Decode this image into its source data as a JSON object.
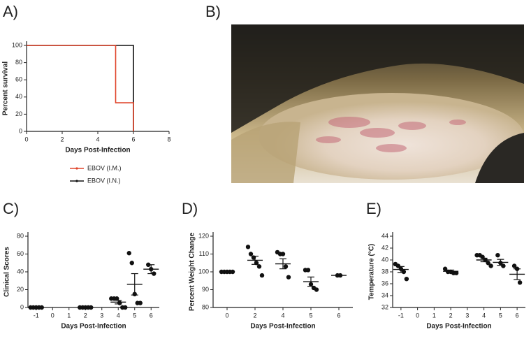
{
  "panels": [
    "A)",
    "B)",
    "C)",
    "D)",
    "E)"
  ],
  "chart_data": [
    {
      "type": "step",
      "xlabel": "Days Post-Infection",
      "ylabel": "Percent survival",
      "xlim": [
        0,
        8
      ],
      "xticks": [
        0,
        2,
        4,
        6,
        8
      ],
      "ylim": [
        0,
        100
      ],
      "yticks": [
        0,
        20,
        40,
        60,
        80,
        100
      ],
      "series": [
        {
          "name": "EBOV (I.N.)",
          "color": "#111111",
          "x": [
            0,
            6
          ],
          "values": [
            100,
            0
          ]
        },
        {
          "name": "EBOV (I.M.)",
          "color": "#e0452b",
          "x": [
            0,
            5,
            6
          ],
          "values": [
            100,
            33.3,
            0
          ]
        }
      ]
    },
    {
      "type": "dotplot",
      "xlabel": "Days Post-Infection",
      "ylabel": "Clinical Scores",
      "xlim": [
        -1.5,
        6.5
      ],
      "xticks": [
        -1,
        0,
        1,
        2,
        3,
        4,
        5,
        6
      ],
      "ylim": [
        0,
        80
      ],
      "yticks": [
        0,
        20,
        40,
        60,
        80
      ],
      "x": [
        -1,
        2,
        4,
        5,
        6
      ],
      "points": [
        [
          0,
          0,
          0,
          0,
          0
        ],
        [
          0,
          0,
          0,
          0,
          0
        ],
        [
          10,
          10,
          10,
          5,
          0,
          0
        ],
        [
          61,
          50,
          15,
          5,
          5
        ],
        [
          48,
          43,
          38
        ]
      ],
      "mean": [
        0,
        0,
        6,
        26,
        43
      ],
      "sem": [
        0,
        0,
        2,
        12,
        5
      ]
    },
    {
      "type": "dotplot",
      "xlabel": "Days Post-Infection",
      "ylabel": "Percent Weight Change",
      "categories": [
        "0",
        "2",
        "4",
        "5",
        "6"
      ],
      "ylim": [
        80,
        120
      ],
      "yticks": [
        80,
        90,
        100,
        110,
        120
      ],
      "points": [
        [
          100,
          100,
          100,
          100,
          100
        ],
        [
          114,
          110,
          108,
          105,
          103,
          98
        ],
        [
          111,
          110,
          110,
          103,
          97
        ],
        [
          101,
          101,
          93,
          91,
          90
        ],
        [
          98,
          98
        ]
      ],
      "mean": [
        100,
        106.5,
        104.5,
        94.5,
        98
      ],
      "sem": [
        0.3,
        2.3,
        2.8,
        2.6,
        0
      ]
    },
    {
      "type": "dotplot",
      "xlabel": "Days Post-Infection",
      "ylabel": "Temperature (°C)",
      "xlim": [
        -1.5,
        6.5
      ],
      "xticks": [
        -1,
        0,
        1,
        2,
        3,
        4,
        5,
        6
      ],
      "ylim": [
        32,
        44
      ],
      "yticks": [
        32,
        34,
        36,
        38,
        40,
        42,
        44
      ],
      "x": [
        -1,
        2,
        4,
        5,
        6
      ],
      "points": [
        [
          39.3,
          39,
          38.5,
          38,
          36.8
        ],
        [
          38.5,
          38,
          38,
          37.8,
          37.8
        ],
        [
          40.8,
          40.8,
          40.5,
          40,
          39.5,
          39
        ],
        [
          40.8,
          39.5,
          39
        ],
        [
          39,
          38.5,
          36.2
        ]
      ],
      "mean": [
        38.4,
        38.1,
        40,
        39.6,
        37.6
      ],
      "sem": [
        0.5,
        0.2,
        0.3,
        0.5,
        0.9
      ]
    }
  ]
}
